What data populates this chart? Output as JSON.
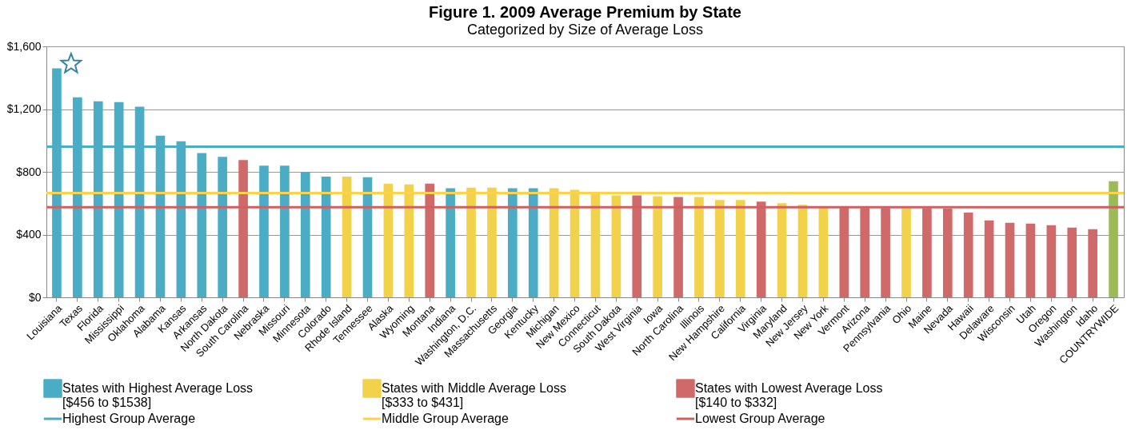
{
  "chart_data": {
    "type": "bar",
    "title": "Figure 1. 2009 Average Premium by State",
    "subtitle": "Categorized by Size of Average Loss",
    "categories": [
      "Louisiana",
      "Texas",
      "Florida",
      "Mississippi",
      "Oklahoma",
      "Alabama",
      "Kansas",
      "Arkansas",
      "North Dakota",
      "South Carolina",
      "Nebraska",
      "Missouri",
      "Minnesota",
      "Colorado",
      "Rhode Island",
      "Tennessee",
      "Alaska",
      "Wyoming",
      "Montana",
      "Indiana",
      "Washington, D.C.",
      "Massachusetts",
      "Georgia",
      "Kentucky",
      "Michigan",
      "New Mexico",
      "Connecticut",
      "South Dakota",
      "West Virginia",
      "Iowa",
      "North Carolina",
      "Illinois",
      "New Hampshire",
      "California",
      "Virginia",
      "Maryland",
      "New Jersey",
      "New York",
      "Vermont",
      "Arizona",
      "Pennsylvania",
      "Ohio",
      "Maine",
      "Nevada",
      "Hawaii",
      "Delaware",
      "Wisconsin",
      "Utah",
      "Oregon",
      "Washington",
      "Idaho",
      "COUNTRYWIDE"
    ],
    "series": [
      {
        "name": "States with Highest Average Loss\n[$456 to $1538]",
        "color": "#4bacc6",
        "values": [
          1460,
          1275,
          1250,
          1245,
          1215,
          1030,
          995,
          920,
          895,
          null,
          840,
          840,
          800,
          770,
          null,
          765,
          null,
          null,
          null,
          695,
          null,
          null,
          695,
          695,
          null,
          null,
          null,
          null,
          null,
          null,
          null,
          null,
          null,
          null,
          null,
          null,
          null,
          null,
          null,
          null,
          null,
          null,
          null,
          null,
          null,
          null,
          null,
          null,
          null,
          null,
          null,
          null
        ]
      },
      {
        "name": "States with Middle Average Loss\n[$333 to $431]",
        "color": "#f2d24b",
        "values": [
          null,
          null,
          null,
          null,
          null,
          null,
          null,
          null,
          null,
          null,
          null,
          null,
          null,
          null,
          770,
          null,
          725,
          720,
          null,
          null,
          700,
          700,
          null,
          null,
          695,
          685,
          670,
          650,
          null,
          645,
          null,
          640,
          620,
          620,
          null,
          600,
          590,
          580,
          null,
          null,
          null,
          570,
          null,
          null,
          null,
          null,
          null,
          null,
          null,
          null,
          null,
          null
        ]
      },
      {
        "name": "States with Lowest Average Loss\n[$140 to $332]",
        "color": "#d06a6a",
        "values": [
          null,
          null,
          null,
          null,
          null,
          null,
          null,
          null,
          null,
          875,
          null,
          null,
          null,
          null,
          null,
          null,
          null,
          null,
          725,
          null,
          null,
          null,
          null,
          null,
          null,
          null,
          null,
          null,
          650,
          null,
          640,
          null,
          null,
          null,
          610,
          null,
          null,
          null,
          575,
          570,
          570,
          null,
          570,
          565,
          540,
          490,
          475,
          470,
          460,
          445,
          435,
          null
        ]
      },
      {
        "color": "#9bbb59",
        "values": [
          null,
          null,
          null,
          null,
          null,
          null,
          null,
          null,
          null,
          null,
          null,
          null,
          null,
          null,
          null,
          null,
          null,
          null,
          null,
          null,
          null,
          null,
          null,
          null,
          null,
          null,
          null,
          null,
          null,
          null,
          null,
          null,
          null,
          null,
          null,
          null,
          null,
          null,
          null,
          null,
          null,
          null,
          null,
          null,
          null,
          null,
          null,
          null,
          null,
          null,
          null,
          740
        ]
      }
    ],
    "ref_lines": [
      {
        "axis": "y",
        "value": 960,
        "label": "Highest Group Average",
        "color": "#4bacc6"
      },
      {
        "axis": "y",
        "value": 665,
        "label": "Middle Group Average",
        "color": "#ffd24a"
      },
      {
        "axis": "y",
        "value": 575,
        "label": "Lowest Group Average",
        "color": "#d06060"
      }
    ],
    "ylim": [
      0,
      1600
    ],
    "yticks": [
      {
        "value": 0,
        "label": "$0"
      },
      {
        "value": 400,
        "label": "$400"
      },
      {
        "value": 800,
        "label": "$800"
      },
      {
        "value": 1200,
        "label": "$1,200"
      },
      {
        "value": 1600,
        "label": "$1,600"
      }
    ],
    "grid": "y",
    "legend": "bottom"
  }
}
